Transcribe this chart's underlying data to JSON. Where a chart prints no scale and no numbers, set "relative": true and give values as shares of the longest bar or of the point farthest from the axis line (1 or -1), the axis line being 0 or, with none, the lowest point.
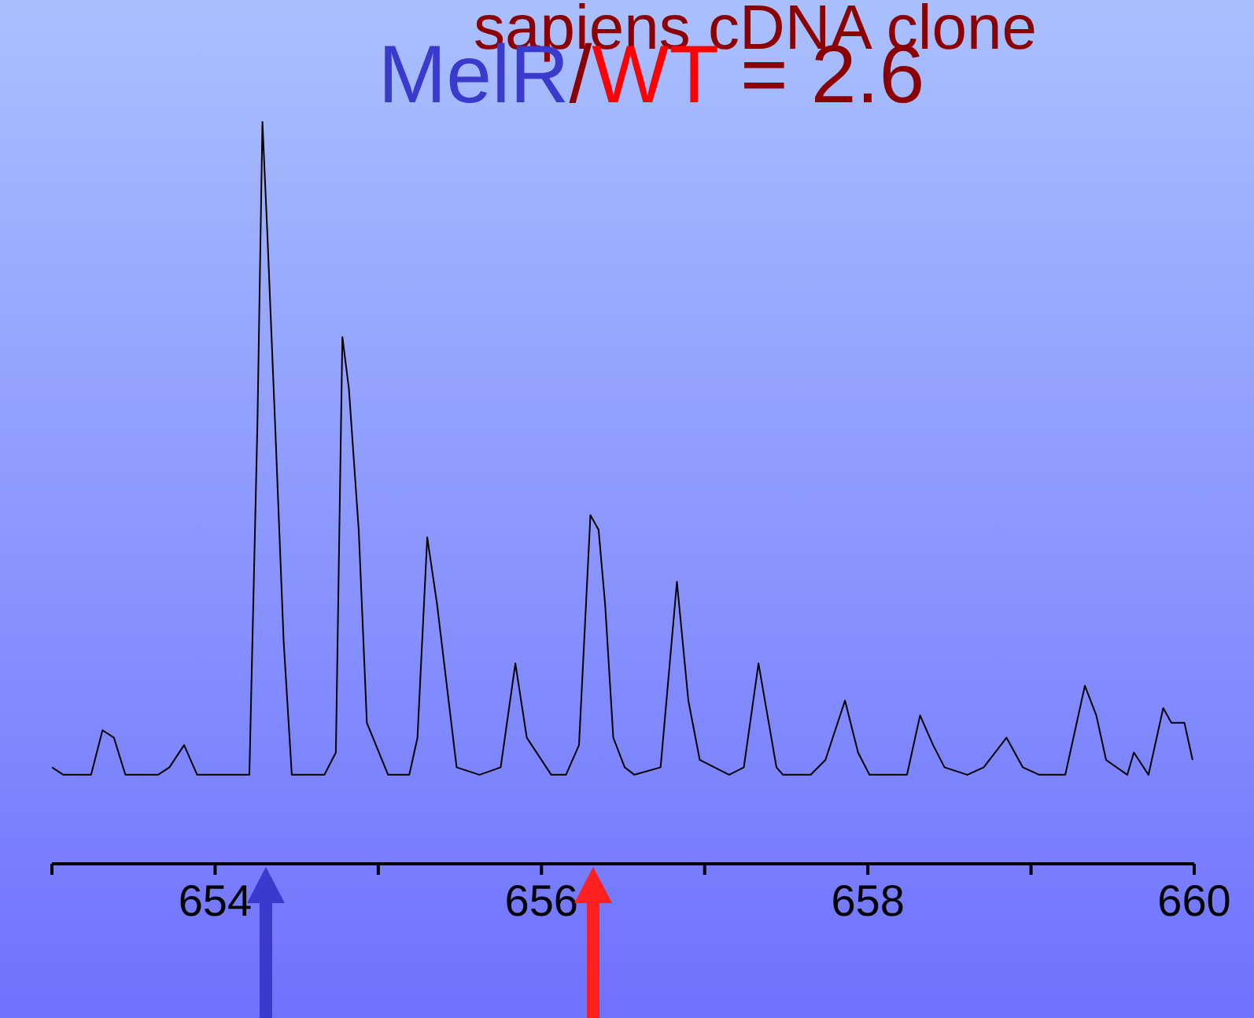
{
  "chart_data": {
    "type": "line",
    "title": "sapiens cDNA clone",
    "subtitle": "MelR/WT = 2.6",
    "relative": true,
    "marker": "none",
    "line_style": "solid",
    "xlim": [
      653,
      660
    ],
    "xticks": [
      {
        "value": 653,
        "label": null
      },
      654,
      {
        "value": 655,
        "label": null
      },
      656,
      {
        "value": 657,
        "label": null
      },
      658,
      {
        "value": 659,
        "label": null
      },
      660
    ],
    "series": [
      {
        "color": "#000000",
        "x": [
          653.0,
          653.07,
          653.16,
          653.24,
          653.31,
          653.38,
          653.45,
          653.65,
          653.72,
          653.81,
          653.89,
          654.03,
          654.21,
          654.26,
          654.29,
          654.32,
          654.37,
          654.42,
          654.47,
          654.56,
          654.67,
          654.74,
          654.78,
          654.82,
          654.88,
          654.93,
          655.06,
          655.19,
          655.24,
          655.3,
          655.36,
          655.48,
          655.62,
          655.75,
          655.84,
          655.91,
          656.06,
          656.15,
          656.23,
          656.3,
          656.35,
          656.39,
          656.44,
          656.51,
          656.57,
          656.73,
          656.83,
          656.9,
          656.97,
          657.15,
          657.24,
          657.33,
          657.44,
          657.48,
          657.65,
          657.74,
          657.86,
          657.94,
          658.01,
          658.24,
          658.32,
          658.4,
          658.47,
          658.61,
          658.71,
          658.85,
          658.95,
          659.05,
          659.21,
          659.33,
          659.4,
          659.46,
          659.59,
          659.63,
          659.72,
          659.81,
          659.86,
          659.94,
          659.99
        ],
        "values": [
          0.13,
          0.12,
          0.12,
          0.12,
          0.18,
          0.17,
          0.12,
          0.12,
          0.13,
          0.16,
          0.12,
          0.12,
          0.12,
          0.6,
          1.0,
          0.85,
          0.58,
          0.3,
          0.12,
          0.12,
          0.12,
          0.15,
          0.71,
          0.64,
          0.45,
          0.19,
          0.12,
          0.12,
          0.17,
          0.44,
          0.35,
          0.13,
          0.12,
          0.13,
          0.27,
          0.17,
          0.12,
          0.12,
          0.16,
          0.47,
          0.45,
          0.35,
          0.17,
          0.13,
          0.12,
          0.13,
          0.38,
          0.22,
          0.14,
          0.12,
          0.13,
          0.27,
          0.13,
          0.12,
          0.12,
          0.14,
          0.22,
          0.15,
          0.12,
          0.12,
          0.2,
          0.16,
          0.13,
          0.12,
          0.13,
          0.17,
          0.13,
          0.12,
          0.12,
          0.24,
          0.2,
          0.14,
          0.12,
          0.15,
          0.12,
          0.21,
          0.19,
          0.19,
          0.14
        ]
      }
    ]
  }
}
